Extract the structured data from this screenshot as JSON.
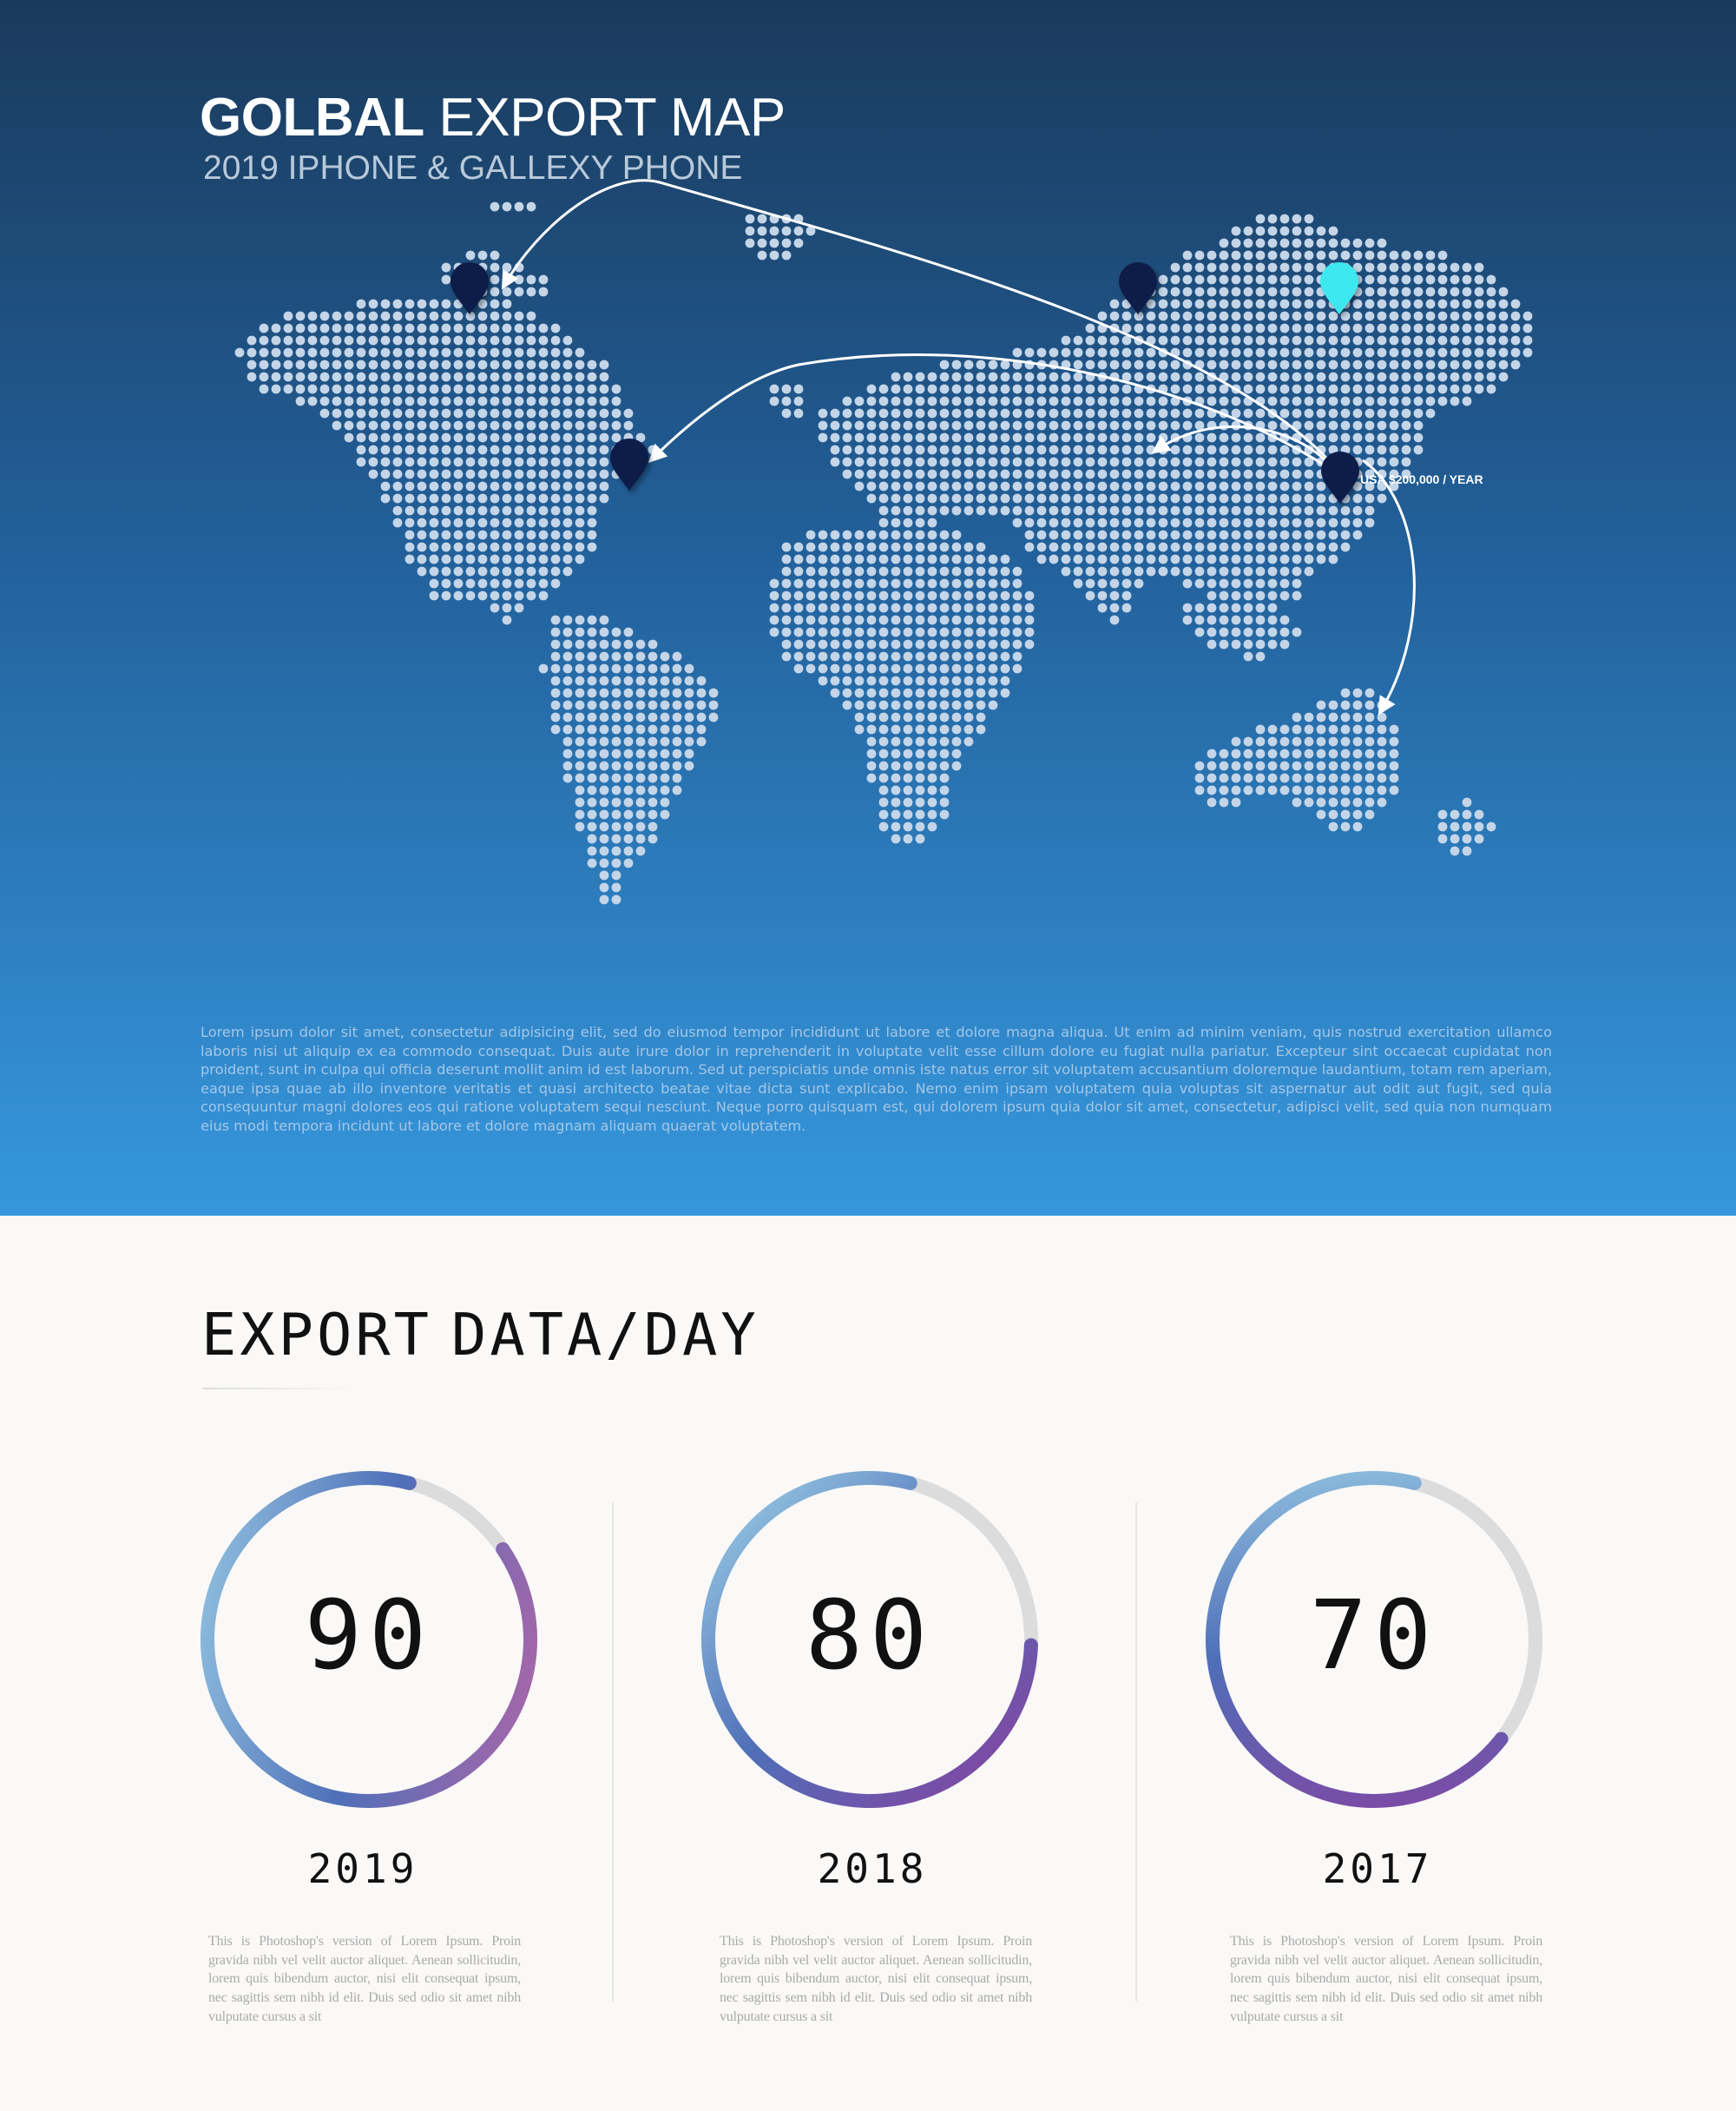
{
  "header": {
    "title_bold": "GOLBAL",
    "title_rest": "EXPORT MAP",
    "subtitle": "2019 IPHONE & GALLEXY PHONE"
  },
  "map": {
    "origin_label": "USA $200,000 / YEAR",
    "colors": {
      "dots": "#c4d5e8",
      "origin_pin": "#3ee8ee",
      "pins": "#0c1e4a",
      "arrows": "#ffffff"
    }
  },
  "lorem": "Lorem ipsum dolor sit amet, consectetur adipisicing elit, sed do eiusmod tempor incididunt ut labore et dolore magna aliqua. Ut enim ad minim veniam, quis nostrud exercitation ullamco laboris nisi ut aliquip ex ea commodo consequat. Duis aute irure dolor in reprehenderit in voluptate velit esse cillum dolore eu fugiat nulla pariatur. Excepteur sint occaecat cupidatat non proident, sunt in culpa qui officia deserunt mollit anim id est laborum. Sed ut perspiciatis unde omnis iste natus error sit voluptatem accusantium doloremque laudantium, totam rem aperiam, eaque ipsa quae ab illo inventore veritatis et quasi architecto beatae vitae dicta sunt explicabo. Nemo enim ipsam voluptatem quia voluptas sit aspernatur aut odit aut fugit, sed quia consequuntur magni dolores eos qui ratione voluptatem sequi nesciunt. Neque porro quisquam est, qui dolorem ipsum quia dolor sit amet, consectetur, adipisci velit, sed quia non numquam eius modi tempora incidunt ut labore et dolore magnam aliquam quaerat voluptatem.",
  "section": {
    "title_word1": "EXPORT",
    "title_word2": "DATA/DAY"
  },
  "chart_data": {
    "type": "donut",
    "title": "EXPORT DATA/DAY",
    "categories": [
      "2019",
      "2018",
      "2017"
    ],
    "values": [
      90,
      80,
      70
    ],
    "max": 100,
    "colors": {
      "track": "#dcdcdc",
      "start": "#9fd3e8",
      "mid": "#4f6fb8",
      "end": "#8a3f9f",
      "end_2019": "#c064a6"
    }
  },
  "gauges": [
    {
      "value": "90",
      "year": "2019",
      "desc": "This is Photoshop's version of Lorem Ipsum. Proin gravida nibh vel velit auctor aliquet. Aenean sollicitudin, lorem quis bibendum auctor, nisi elit consequat ipsum, nec sagittis sem nibh id elit. Duis sed odio sit amet nibh vulputate cursus a sit"
    },
    {
      "value": "80",
      "year": "2018",
      "desc": "This is Photoshop's version of Lorem Ipsum. Proin gravida nibh vel velit auctor aliquet. Aenean sollicitudin, lorem quis bibendum auctor, nisi elit consequat ipsum, nec sagittis sem nibh id elit. Duis sed odio sit amet nibh vulputate cursus a sit"
    },
    {
      "value": "70",
      "year": "2017",
      "desc": "This is Photoshop's version of Lorem Ipsum. Proin gravida nibh vel velit auctor aliquet. Aenean sollicitudin, lorem quis bibendum auctor, nisi elit consequat ipsum, nec sagittis sem nibh id elit. Duis sed odio sit amet nibh vulputate cursus a sit"
    }
  ]
}
